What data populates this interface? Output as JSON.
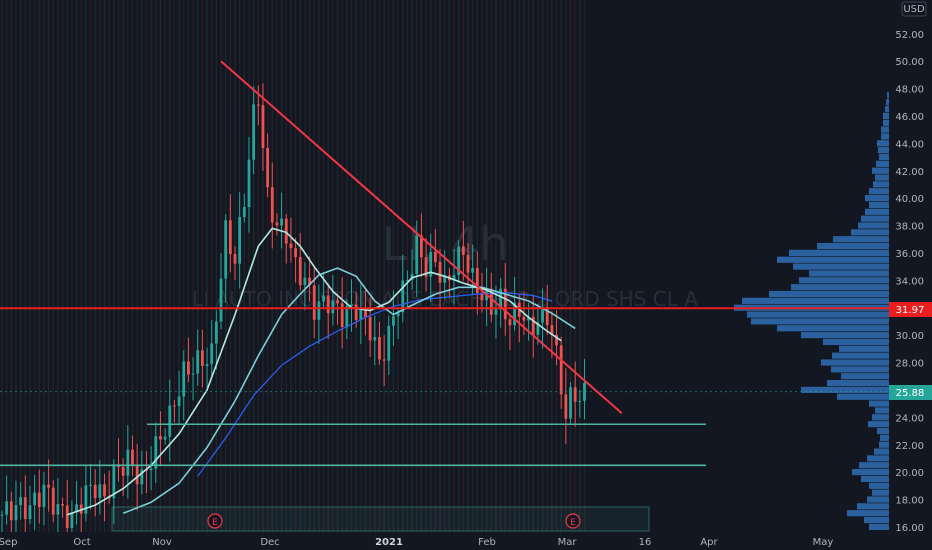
{
  "chart_data": {
    "type": "candlestick",
    "watermark_symbol": "LI, 4h",
    "watermark_name": "LI AUTO INC SPON ADS EACH REP 2 ORD SHS CL A",
    "currency": "USD",
    "ylim": [
      15.4,
      53.6
    ],
    "y_ticks": [
      "16.00",
      "18.00",
      "20.00",
      "22.00",
      "24.00",
      "26.00",
      "28.00",
      "30.00",
      "32.00",
      "34.00",
      "36.00",
      "38.00",
      "40.00",
      "42.00",
      "44.00",
      "46.00",
      "48.00",
      "50.00",
      "52.00"
    ],
    "x_ticks": [
      "Sep",
      "Oct",
      "Nov",
      "Dec",
      "2021",
      "Feb",
      "Mar",
      "16",
      "Apr",
      "May"
    ],
    "price_points": [
      [
        0,
        16.9
      ],
      [
        3,
        17.5
      ],
      [
        6,
        17.4
      ],
      [
        9,
        18.8
      ],
      [
        12,
        17.3
      ],
      [
        15,
        16.6
      ],
      [
        18,
        18.5
      ],
      [
        20,
        19.0
      ],
      [
        22,
        18.0
      ],
      [
        24,
        19.9
      ],
      [
        27,
        20.9
      ],
      [
        30,
        19.4
      ],
      [
        33,
        21.8
      ],
      [
        36,
        24.0
      ],
      [
        39,
        27.2
      ],
      [
        42,
        28.0
      ],
      [
        45,
        28.5
      ],
      [
        48,
        37.5
      ],
      [
        50,
        35.5
      ],
      [
        52,
        40.0
      ],
      [
        54,
        46.0
      ],
      [
        55,
        47.5
      ],
      [
        57,
        40.0
      ],
      [
        59,
        38.0
      ],
      [
        61,
        37.5
      ],
      [
        63,
        35.0
      ],
      [
        65,
        34.0
      ],
      [
        67,
        32.0
      ],
      [
        70,
        32.5
      ],
      [
        73,
        31.5
      ],
      [
        76,
        32.0
      ],
      [
        79,
        30.5
      ],
      [
        81,
        28.0
      ],
      [
        83,
        30.0
      ],
      [
        85,
        32.5
      ],
      [
        87,
        34.0
      ],
      [
        89,
        36.5
      ],
      [
        91,
        35.0
      ],
      [
        93,
        35.5
      ],
      [
        95,
        33.5
      ],
      [
        97,
        35.0
      ],
      [
        99,
        36.2
      ],
      [
        101,
        34.0
      ],
      [
        103,
        33.0
      ],
      [
        105,
        32.0
      ],
      [
        107,
        32.5
      ],
      [
        109,
        31.0
      ],
      [
        111,
        32.0
      ],
      [
        113,
        30.5
      ],
      [
        115,
        31.0
      ],
      [
        117,
        31.5
      ],
      [
        118,
        30.0
      ],
      [
        119,
        28.5
      ],
      [
        120,
        26.5
      ],
      [
        121,
        23.8
      ],
      [
        122,
        25.5
      ],
      [
        123,
        26.0
      ],
      [
        124,
        25.0
      ],
      [
        125,
        25.88
      ]
    ],
    "ma_fast": [
      [
        14,
        16.9
      ],
      [
        20,
        17.6
      ],
      [
        26,
        18.8
      ],
      [
        32,
        20.5
      ],
      [
        38,
        22.8
      ],
      [
        44,
        26.0
      ],
      [
        50,
        31.5
      ],
      [
        55,
        36.5
      ],
      [
        58,
        37.8
      ],
      [
        61,
        37.5
      ],
      [
        64,
        36.5
      ],
      [
        67,
        35.0
      ],
      [
        71,
        33.2
      ],
      [
        75,
        32.0
      ],
      [
        79,
        31.8
      ],
      [
        83,
        32.4
      ],
      [
        88,
        34.2
      ],
      [
        92,
        34.6
      ],
      [
        95,
        34.3
      ],
      [
        99,
        33.8
      ],
      [
        104,
        33.3
      ],
      [
        109,
        32.5
      ],
      [
        113,
        31.3
      ],
      [
        117,
        30.3
      ],
      [
        120,
        29.6
      ]
    ],
    "ma_slow": [
      [
        26,
        17.0
      ],
      [
        32,
        17.8
      ],
      [
        38,
        19.2
      ],
      [
        44,
        21.8
      ],
      [
        50,
        25.2
      ],
      [
        55,
        28.5
      ],
      [
        60,
        31.5
      ],
      [
        64,
        33.0
      ],
      [
        68,
        34.4
      ],
      [
        72,
        34.9
      ],
      [
        76,
        34.3
      ],
      [
        80,
        32.5
      ],
      [
        84,
        31.5
      ],
      [
        88,
        32.2
      ],
      [
        93,
        33.0
      ],
      [
        98,
        33.5
      ],
      [
        103,
        33.5
      ],
      [
        108,
        33.0
      ],
      [
        113,
        32.5
      ],
      [
        118,
        31.6
      ],
      [
        123,
        30.5
      ]
    ],
    "ma_long": [
      [
        42,
        19.7
      ],
      [
        48,
        22.5
      ],
      [
        54,
        25.6
      ],
      [
        60,
        27.8
      ],
      [
        66,
        29.2
      ],
      [
        72,
        30.3
      ],
      [
        78,
        31.3
      ],
      [
        84,
        32.1
      ],
      [
        90,
        32.6
      ],
      [
        96,
        32.8
      ],
      [
        102,
        33.0
      ],
      [
        108,
        33.1
      ],
      [
        114,
        32.9
      ],
      [
        118,
        32.5
      ]
    ],
    "current_price": {
      "label": "25.88",
      "value": 25.88
    },
    "resistance_level": {
      "label": "31.97",
      "value": 31.97
    },
    "support_levels": [
      23.5,
      20.5
    ],
    "trendline": {
      "from": [
        47,
        50.0
      ],
      "to": [
        133,
        24.3
      ]
    },
    "volume_profile": [
      {
        "price": 16.0,
        "width": 20
      },
      {
        "price": 16.5,
        "width": 25
      },
      {
        "price": 17.0,
        "width": 42
      },
      {
        "price": 17.5,
        "width": 32
      },
      {
        "price": 18.0,
        "width": 22
      },
      {
        "price": 18.5,
        "width": 17
      },
      {
        "price": 19.0,
        "width": 20
      },
      {
        "price": 19.5,
        "width": 28
      },
      {
        "price": 20.0,
        "width": 37
      },
      {
        "price": 20.5,
        "width": 30
      },
      {
        "price": 21.0,
        "width": 22
      },
      {
        "price": 21.5,
        "width": 15
      },
      {
        "price": 22.0,
        "width": 10
      },
      {
        "price": 22.5,
        "width": 9
      },
      {
        "price": 23.0,
        "width": 12
      },
      {
        "price": 23.5,
        "width": 21
      },
      {
        "price": 24.0,
        "width": 17
      },
      {
        "price": 24.5,
        "width": 14
      },
      {
        "price": 25.0,
        "width": 20
      },
      {
        "price": 25.5,
        "width": 52
      },
      {
        "price": 26.0,
        "width": 88
      },
      {
        "price": 26.5,
        "width": 62
      },
      {
        "price": 27.0,
        "width": 48
      },
      {
        "price": 27.5,
        "width": 58
      },
      {
        "price": 28.0,
        "width": 68
      },
      {
        "price": 28.5,
        "width": 57
      },
      {
        "price": 29.0,
        "width": 50
      },
      {
        "price": 29.5,
        "width": 66
      },
      {
        "price": 30.0,
        "width": 88
      },
      {
        "price": 30.5,
        "width": 112
      },
      {
        "price": 31.0,
        "width": 138
      },
      {
        "price": 31.5,
        "width": 142
      },
      {
        "price": 32.0,
        "width": 155
      },
      {
        "price": 32.5,
        "width": 147
      },
      {
        "price": 33.0,
        "width": 120
      },
      {
        "price": 33.5,
        "width": 98
      },
      {
        "price": 34.0,
        "width": 90
      },
      {
        "price": 34.5,
        "width": 80
      },
      {
        "price": 35.0,
        "width": 96
      },
      {
        "price": 35.5,
        "width": 112
      },
      {
        "price": 36.0,
        "width": 100
      },
      {
        "price": 36.5,
        "width": 72
      },
      {
        "price": 37.0,
        "width": 56
      },
      {
        "price": 37.5,
        "width": 38
      },
      {
        "price": 38.0,
        "width": 31
      },
      {
        "price": 38.5,
        "width": 28
      },
      {
        "price": 39.0,
        "width": 24
      },
      {
        "price": 39.5,
        "width": 20
      },
      {
        "price": 40.0,
        "width": 24
      },
      {
        "price": 40.5,
        "width": 20
      },
      {
        "price": 41.0,
        "width": 16
      },
      {
        "price": 41.5,
        "width": 14
      },
      {
        "price": 42.0,
        "width": 17
      },
      {
        "price": 42.5,
        "width": 13
      },
      {
        "price": 43.0,
        "width": 10
      },
      {
        "price": 43.5,
        "width": 11
      },
      {
        "price": 44.0,
        "width": 12
      },
      {
        "price": 44.5,
        "width": 8
      },
      {
        "price": 45.0,
        "width": 8
      },
      {
        "price": 45.5,
        "width": 6
      },
      {
        "price": 46.0,
        "width": 6
      },
      {
        "price": 46.5,
        "width": 4
      },
      {
        "price": 47.0,
        "width": 3
      },
      {
        "price": 47.5,
        "width": 2
      }
    ],
    "earnings_markers": [
      "E",
      "E"
    ]
  },
  "colors": {
    "background": "#131722",
    "up": "#26a69a",
    "down": "#ef5350",
    "resistance": "#e91e1e",
    "trendline": "#f23645",
    "support": "#4db6a0",
    "ma_fast": "#b2ebe4",
    "ma_slow": "#7ccfd8",
    "ma_long": "#2962ff",
    "profile": "#2f6eb4",
    "price_badge": "#26a69a",
    "axis_text": "#b2b5be"
  }
}
